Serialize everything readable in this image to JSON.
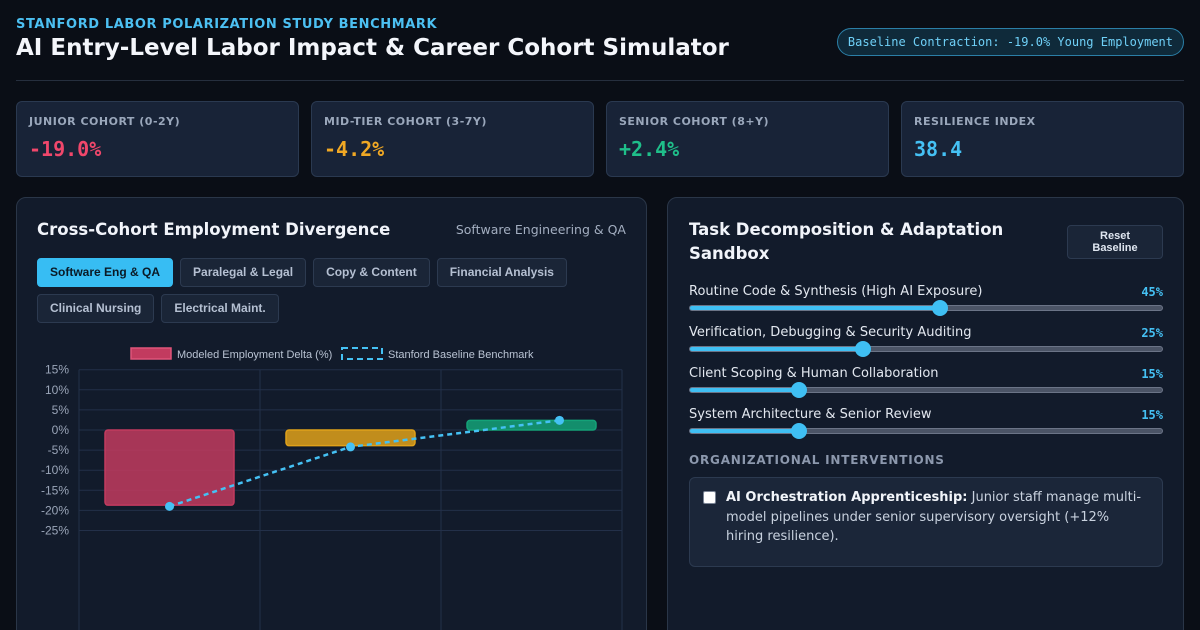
{
  "header": {
    "eyebrow": "STANFORD LABOR POLARIZATION STUDY BENCHMARK",
    "title": "AI Entry-Level Labor Impact & Career Cohort Simulator",
    "badge": "Baseline Contraction: -19.0% Young Employment"
  },
  "kpis": [
    {
      "label": "JUNIOR COHORT (0-2Y)",
      "value": "-19.0%",
      "color": "#f0476b"
    },
    {
      "label": "MID-TIER COHORT (3-7Y)",
      "value": "-4.2%",
      "color": "#f0a824"
    },
    {
      "label": "SENIOR COHORT (8+Y)",
      "value": "+2.4%",
      "color": "#1fbf8a"
    },
    {
      "label": "RESILIENCE INDEX",
      "value": "38.4",
      "color": "#45c1f4"
    }
  ],
  "left_panel": {
    "title": "Cross-Cohort Employment Divergence",
    "subtitle": "Software Engineering & QA",
    "tabs": [
      {
        "label": "Software Eng & QA",
        "active": true
      },
      {
        "label": "Paralegal & Legal",
        "active": false
      },
      {
        "label": "Copy & Content",
        "active": false
      },
      {
        "label": "Financial Analysis",
        "active": false
      },
      {
        "label": "Clinical Nursing",
        "active": false
      },
      {
        "label": "Electrical Maint.",
        "active": false
      }
    ]
  },
  "chart_data": {
    "type": "bar",
    "legend": [
      "Modeled Employment Delta (%)",
      "Stanford Baseline Benchmark"
    ],
    "y_ticks": [
      "15%",
      "10%",
      "5%",
      "0%",
      "-5%",
      "-10%",
      "-15%",
      "-20%",
      "-25%"
    ],
    "ylim": [
      -28,
      15
    ],
    "series": [
      {
        "name": "Modeled Employment Delta (%)",
        "values": [
          -18.7,
          -3.9,
          2.4
        ],
        "colors": [
          "#c23b5f",
          "#e0a11a",
          "#14a278"
        ]
      },
      {
        "name": "Stanford Baseline Benchmark",
        "type": "line",
        "values": [
          -19.0,
          -4.2,
          2.4
        ],
        "color": "#45c1f4"
      }
    ],
    "grid": true,
    "legend_position": "top"
  },
  "right_panel": {
    "title_line1": "Task Decomposition & Adaptation",
    "title_line2": "Sandbox",
    "reset_line1": "Reset",
    "reset_line2": "Baseline",
    "sliders": [
      {
        "label": "Routine Code & Synthesis (High AI Exposure)",
        "value_text": "45%",
        "fraction": 0.53
      },
      {
        "label": "Verification, Debugging & Security Auditing",
        "value_text": "25%",
        "fraction": 0.367
      },
      {
        "label": "Client Scoping & Human Collaboration",
        "value_text": "15%",
        "fraction": 0.23
      },
      {
        "label": "System Architecture & Senior Review",
        "value_text": "15%",
        "fraction": 0.23
      }
    ],
    "section_heading": "ORGANIZATIONAL INTERVENTIONS",
    "intervention": {
      "bold": "AI Orchestration Apprenticeship:",
      "text": " Junior staff manage multi-model pipelines under senior supervisory oversight (+12% hiring resilience).",
      "checked": false
    }
  }
}
